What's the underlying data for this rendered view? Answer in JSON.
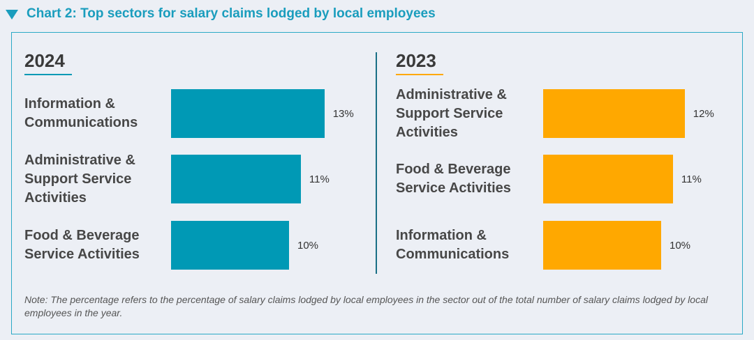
{
  "title": "Chart 2: Top sectors for salary claims lodged by local employees",
  "note": "Note: The percentage refers to the percentage of salary claims lodged by local employees in the sector out of the total number of salary claims lodged by local employees in the year.",
  "chart_data": [
    {
      "type": "bar",
      "title": "2024",
      "color": "#0099b5",
      "categories": [
        "Information & Communications",
        "Administrative & Support Service Activities",
        "Food & Beverage Service Activities"
      ],
      "values": [
        13,
        11,
        10
      ],
      "value_labels": [
        "13%",
        "11%",
        "10%"
      ]
    },
    {
      "type": "bar",
      "title": "2023",
      "color": "#ffa800",
      "categories": [
        "Administrative & Support Service Activities",
        "Food & Beverage Service Activities",
        "Information & Communications"
      ],
      "values": [
        12,
        11,
        10
      ],
      "value_labels": [
        "12%",
        "11%",
        "10%"
      ]
    }
  ]
}
